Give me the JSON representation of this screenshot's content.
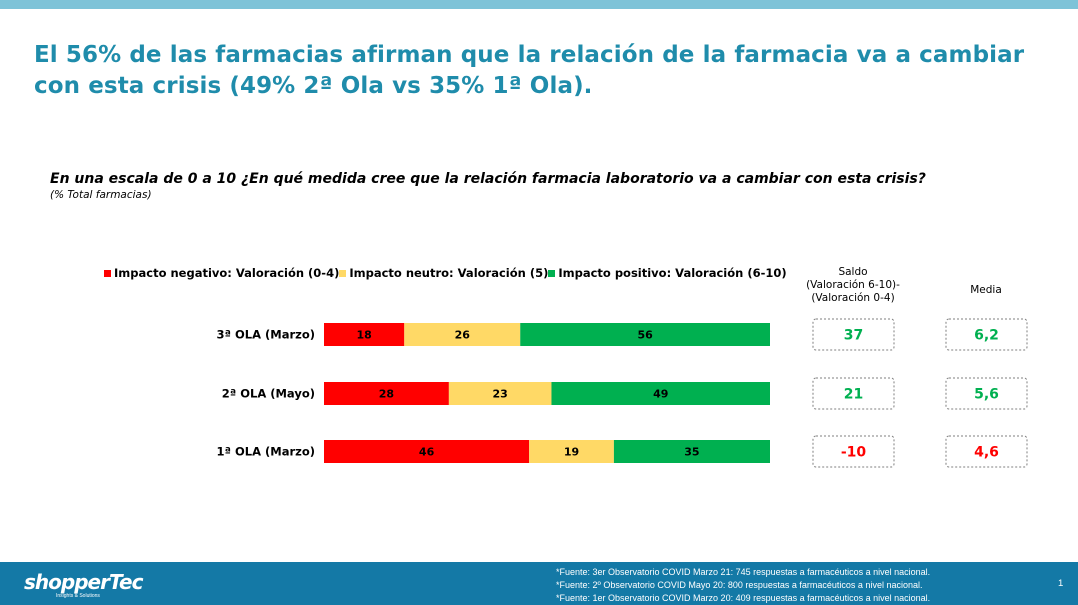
{
  "title": "El 56% de las farmacias afirman que la relación de la farmacia va a cambiar con esta crisis (49% 2ª Ola vs 35% 1ª Ola).",
  "question": "En una escala de 0 a 10 ¿En qué medida cree que la relación farmacia laboratorio va a cambiar con esta crisis?",
  "question_note": "(% Total farmacias)",
  "saldo_header": [
    "Saldo",
    "(Valoración 6-10)-",
    "(Valoración 0-4)"
  ],
  "media_header": "Media",
  "colors": {
    "title": "#1f8cab",
    "negative": "#ff0000",
    "neutral": "#ffd966",
    "positive": "#00b050",
    "footer": "#1479a6",
    "top_bar": "#7ec3d8"
  },
  "chart_data": {
    "type": "bar",
    "orientation": "horizontal",
    "stacked": true,
    "categories": [
      "3ª OLA (Marzo)",
      "2ª OLA (Mayo)",
      "1ª OLA (Marzo)"
    ],
    "series": [
      {
        "name": "Impacto negativo: Valoración (0-4)",
        "color": "#ff0000",
        "values": [
          18,
          28,
          46
        ]
      },
      {
        "name": "Impacto neutro: Valoración (5)",
        "color": "#ffd966",
        "values": [
          26,
          23,
          19
        ]
      },
      {
        "name": "Impacto positivo: Valoración (6-10)",
        "color": "#00b050",
        "values": [
          56,
          49,
          35
        ]
      }
    ],
    "saldo": [
      "37",
      "21",
      "-10"
    ],
    "media": [
      "6,2",
      "5,6",
      "4,6"
    ],
    "saldo_colors": [
      "#00b050",
      "#00b050",
      "#ff0000"
    ],
    "legend_position": "top",
    "xlim": [
      0,
      100
    ]
  },
  "footer": {
    "logo": "shopperTec",
    "logo_tagline": "Insights & Solutions",
    "sources": [
      "*Fuente: 3er Observatorio COVID Marzo 21: 745 respuestas a farmacéuticos a nivel nacional.",
      "*Fuente: 2º Observatorio COVID Mayo 20: 800 respuestas a farmacéuticos a nivel nacional.",
      "*Fuente: 1er Observatorio COVID Marzo 20: 409 respuestas a farmacéuticos a nivel nacional."
    ],
    "page_number": "1"
  }
}
